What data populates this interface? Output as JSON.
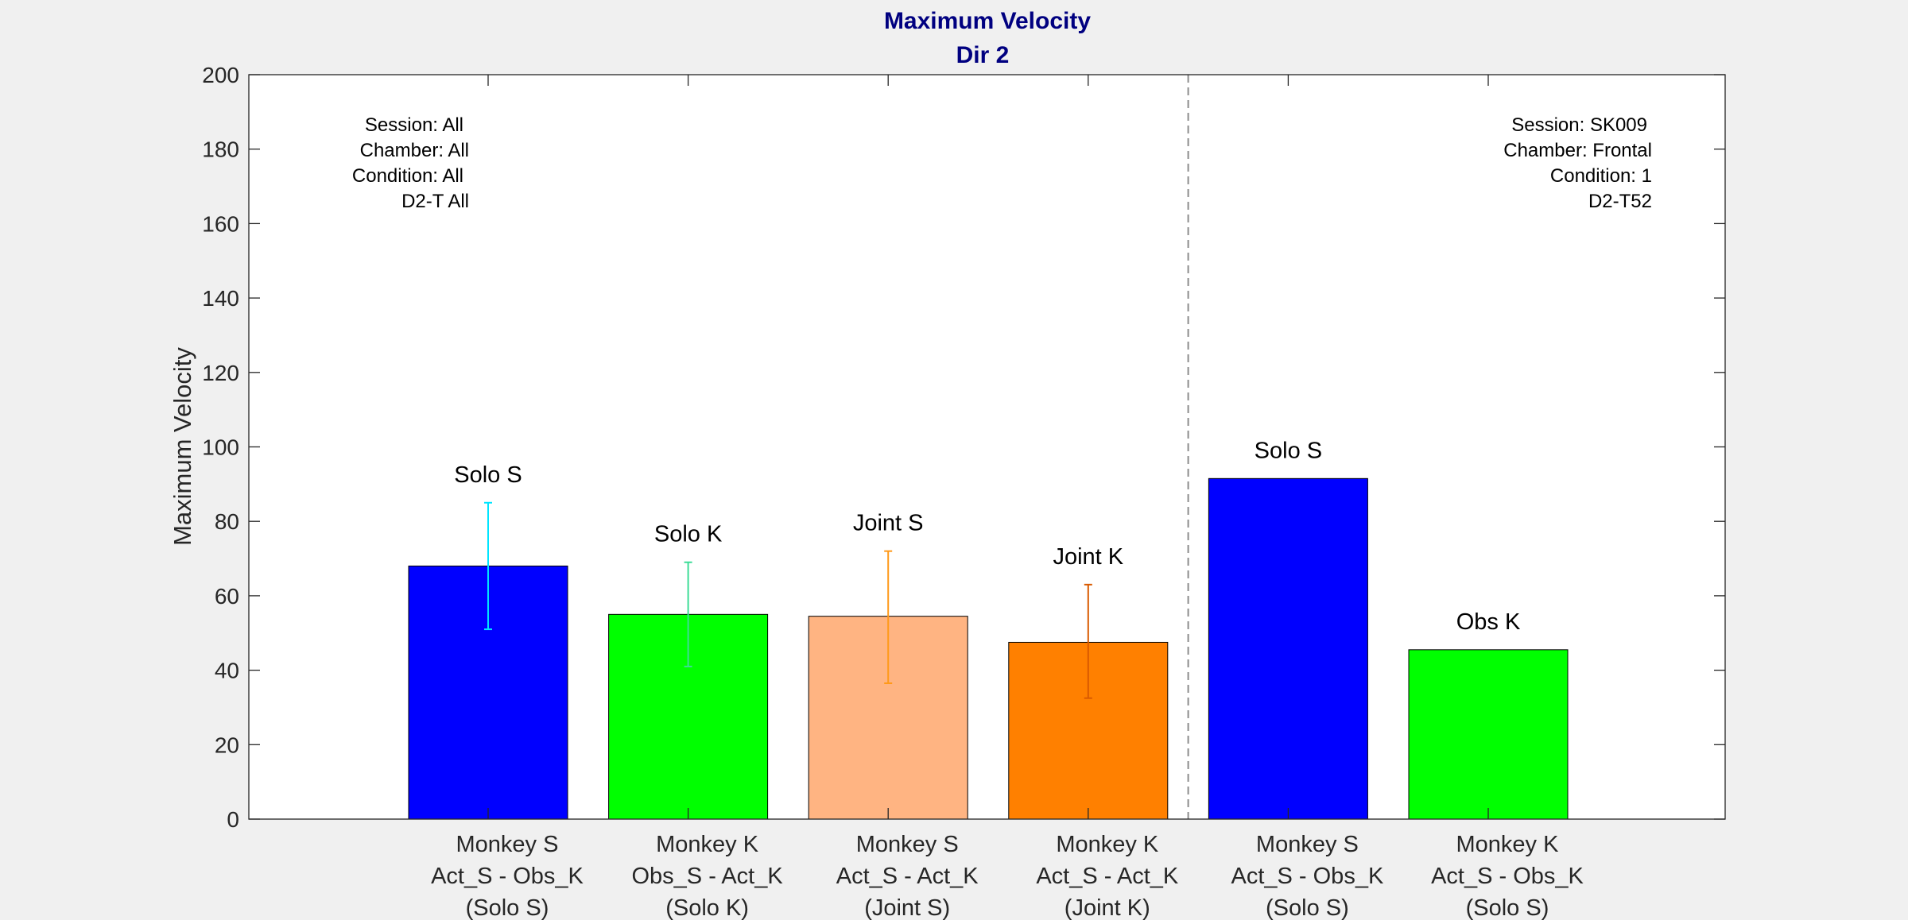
{
  "chart_data": {
    "type": "bar",
    "title": "Maximum Velocity",
    "subtitle": "Dir 2",
    "ylabel": "Maximum Velocity",
    "xlabel": "",
    "ylim": [
      0,
      200
    ],
    "yticks": [
      0,
      20,
      40,
      60,
      80,
      100,
      120,
      140,
      160,
      180,
      200
    ],
    "grid": false,
    "divider_after_bar": 4,
    "bars": [
      {
        "label": "Solo S",
        "category": [
          "Monkey S",
          "Act_S - Obs_K",
          "(Solo S)"
        ],
        "value": 68,
        "err_low": 51,
        "err_high": 85,
        "color": "#0000ff",
        "err_color": "#00e5ff"
      },
      {
        "label": "Solo K",
        "category": [
          "Monkey K",
          "Obs_S - Act_K",
          "(Solo K)"
        ],
        "value": 55,
        "err_low": 41,
        "err_high": 69,
        "color": "#00ff00",
        "err_color": "#3ddc97"
      },
      {
        "label": "Joint S",
        "category": [
          "Monkey S",
          "Act_S - Act_K",
          "(Joint S)"
        ],
        "value": 54.5,
        "err_low": 36.5,
        "err_high": 72,
        "color": "#ffb482",
        "err_color": "#ff9a1a"
      },
      {
        "label": "Joint K",
        "category": [
          "Monkey K",
          "Act_S - Act_K",
          "(Joint K)"
        ],
        "value": 47.5,
        "err_low": 32.5,
        "err_high": 63,
        "color": "#ff8000",
        "err_color": "#d95a00"
      },
      {
        "label": "Solo S",
        "category": [
          "Monkey S",
          "Act_S - Obs_K",
          "(Solo S)"
        ],
        "value": 91.5,
        "color": "#0000ff"
      },
      {
        "label": "Obs K",
        "category": [
          "Monkey K",
          "Act_S - Obs_K",
          "(Solo S)"
        ],
        "value": 45.5,
        "color": "#00ff00"
      }
    ],
    "annotations": {
      "left": [
        "Session: All",
        "Chamber: All",
        "Condition: All",
        "D2-T All"
      ],
      "right": [
        "Session: SK009",
        "Chamber: Frontal",
        "Condition: 1",
        "D2-T52"
      ]
    }
  }
}
